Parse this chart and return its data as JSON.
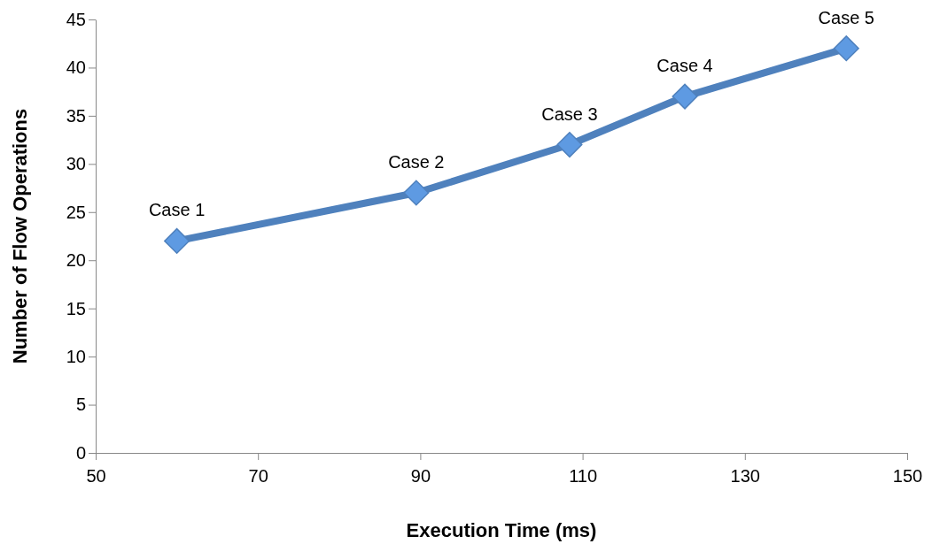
{
  "chart_data": {
    "type": "line",
    "xlabel": "Execution Time (ms)",
    "ylabel": "Number of Flow Operations",
    "x": [
      60,
      89.5,
      108.4,
      122.6,
      142.5
    ],
    "series": [
      {
        "color": "#4f81bd",
        "values": [
          22,
          27,
          32,
          37,
          42
        ]
      }
    ],
    "xlim": [
      50,
      150
    ],
    "xticks": [
      50,
      70,
      90,
      110,
      130,
      150
    ],
    "ylim": [
      0,
      45
    ],
    "yticks": [
      0,
      5,
      10,
      15,
      20,
      25,
      30,
      35,
      40,
      45
    ],
    "marker": "diamond",
    "line_style": "solid",
    "grid": false,
    "annotations": [
      {
        "text": "Case 1",
        "x": 60,
        "y": 22
      },
      {
        "text": "Case 2",
        "x": 89.5,
        "y": 27
      },
      {
        "text": "Case 3",
        "x": 108.4,
        "y": 32
      },
      {
        "text": "Case 4",
        "x": 122.6,
        "y": 37
      },
      {
        "text": "Case 5",
        "x": 142.5,
        "y": 42
      }
    ]
  }
}
